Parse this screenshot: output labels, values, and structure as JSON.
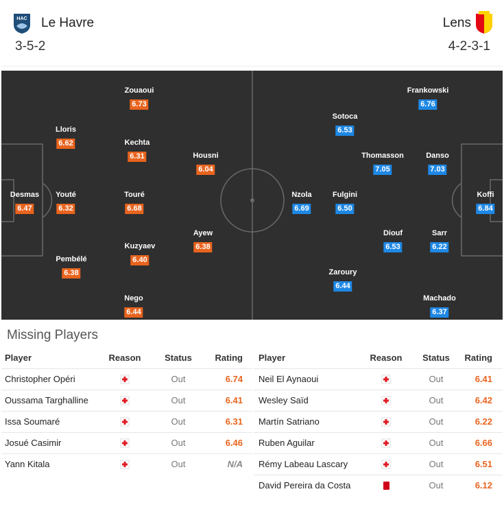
{
  "header": {
    "home": {
      "name": "Le Havre",
      "formation": "3-5-2"
    },
    "away": {
      "name": "Lens",
      "formation": "4-2-3-1"
    }
  },
  "pitch": {
    "home": [
      {
        "name": "Zouaoui",
        "rating": "6.73"
      },
      {
        "name": "Lloris",
        "rating": "6.62"
      },
      {
        "name": "Kechta",
        "rating": "6.31"
      },
      {
        "name": "Housni",
        "rating": "6.04"
      },
      {
        "name": "Desmas",
        "rating": "6.47"
      },
      {
        "name": "Youté",
        "rating": "6.32"
      },
      {
        "name": "Touré",
        "rating": "6.68"
      },
      {
        "name": "Ayew",
        "rating": "6.38"
      },
      {
        "name": "Kuzyaev",
        "rating": "6.40"
      },
      {
        "name": "Pembélé",
        "rating": "6.38"
      },
      {
        "name": "Nego",
        "rating": "6.44"
      }
    ],
    "away": [
      {
        "name": "Frankowski",
        "rating": "6.76"
      },
      {
        "name": "Sotoca",
        "rating": "6.53"
      },
      {
        "name": "Thomasson",
        "rating": "7.05"
      },
      {
        "name": "Danso",
        "rating": "7.03"
      },
      {
        "name": "Nzola",
        "rating": "6.69"
      },
      {
        "name": "Fulgini",
        "rating": "6.50"
      },
      {
        "name": "Koffi",
        "rating": "6.84"
      },
      {
        "name": "Diouf",
        "rating": "6.53"
      },
      {
        "name": "Sarr",
        "rating": "6.22"
      },
      {
        "name": "Zaroury",
        "rating": "6.44"
      },
      {
        "name": "Machado",
        "rating": "6.37"
      }
    ]
  },
  "missing": {
    "title": "Missing Players",
    "home": {
      "columns": [
        "Player",
        "Reason",
        "Status",
        "Rating"
      ],
      "rows": [
        {
          "player": "Christopher Opéri",
          "reason": "injury",
          "status": "Out",
          "rating": "6.74"
        },
        {
          "player": "Oussama Targhalline",
          "reason": "injury",
          "status": "Out",
          "rating": "6.41"
        },
        {
          "player": "Issa Soumaré",
          "reason": "injury",
          "status": "Out",
          "rating": "6.31"
        },
        {
          "player": "Josué Casimir",
          "reason": "injury",
          "status": "Out",
          "rating": "6.46"
        },
        {
          "player": "Yann Kitala",
          "reason": "injury",
          "status": "Out",
          "rating": "N/A"
        }
      ]
    },
    "away": {
      "columns": [
        "Player",
        "Reason",
        "Status",
        "Rating"
      ],
      "rows": [
        {
          "player": "Neil El Aynaoui",
          "reason": "injury",
          "status": "Out",
          "rating": "6.41"
        },
        {
          "player": "Wesley Saïd",
          "reason": "injury",
          "status": "Out",
          "rating": "6.42"
        },
        {
          "player": "Martín Satriano",
          "reason": "injury",
          "status": "Out",
          "rating": "6.22"
        },
        {
          "player": "Ruben Aguilar",
          "reason": "injury",
          "status": "Out",
          "rating": "6.66"
        },
        {
          "player": "Rémy Labeau Lascary",
          "reason": "injury",
          "status": "Out",
          "rating": "6.51"
        },
        {
          "player": "David Pereira da Costa",
          "reason": "red-card",
          "status": "Out",
          "rating": "6.12"
        }
      ]
    }
  }
}
